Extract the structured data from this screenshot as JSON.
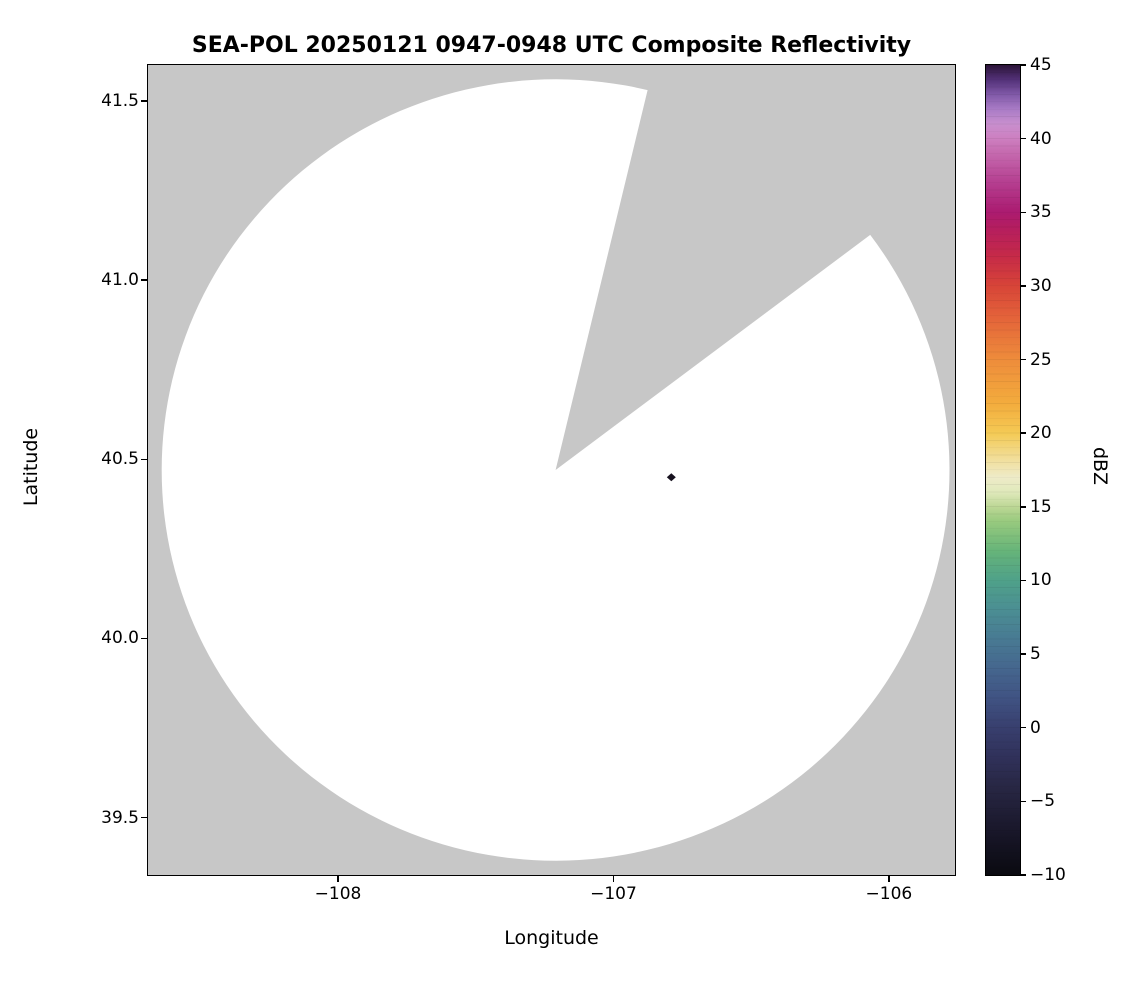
{
  "chart": {
    "title": "SEA-POL 20250121 0947-0948 UTC Composite Reflectivity",
    "xlabel": "Longitude",
    "ylabel": "Latitude",
    "colorbar_label": "dBZ"
  },
  "chart_data": {
    "type": "radar-ppi-map",
    "title": "SEA-POL 20250121 0947-0948 UTC Composite Reflectivity",
    "xlabel": "Longitude",
    "ylabel": "Latitude",
    "xlim": [
      -108.69,
      -105.76
    ],
    "ylim": [
      39.34,
      41.6
    ],
    "xticks": [
      -108,
      -107,
      -106
    ],
    "xtick_labels": [
      "−108",
      "−107",
      "−106"
    ],
    "yticks": [
      39.5,
      40.0,
      40.5,
      41.0,
      41.5
    ],
    "ytick_labels": [
      "39.5",
      "40.0",
      "40.5",
      "41.0",
      "41.5"
    ],
    "grid": false,
    "background_outside_range": "#c7c7c7",
    "inside_range_no_echo": "#ffffff",
    "radar": {
      "center_lon": -107.21,
      "center_lat": 40.47,
      "radius_lon_deg": 1.43,
      "radius_lat_deg": 1.09,
      "missing_sector_azimuth_deg": [
        13.5,
        53
      ]
    },
    "echo_points": [
      {
        "lon": -106.79,
        "lat": 40.45,
        "color": "#17121f"
      }
    ],
    "colorbar": {
      "label": "dBZ",
      "min": -10,
      "max": 45,
      "ticks": [
        -10,
        -5,
        0,
        5,
        10,
        15,
        20,
        25,
        30,
        35,
        40,
        45
      ],
      "tick_labels": [
        "−10",
        "−5",
        "0",
        "5",
        "10",
        "15",
        "20",
        "25",
        "30",
        "35",
        "40",
        "45"
      ],
      "orientation": "vertical",
      "stops": [
        [
          -10,
          "#0a0a10"
        ],
        [
          -7,
          "#19172a"
        ],
        [
          -4,
          "#282744"
        ],
        [
          -2,
          "#30315a"
        ],
        [
          0,
          "#383f6e"
        ],
        [
          2,
          "#405383"
        ],
        [
          4,
          "#45668e"
        ],
        [
          6,
          "#487a93"
        ],
        [
          8,
          "#4b8e93"
        ],
        [
          10,
          "#4fa189"
        ],
        [
          12,
          "#66b479"
        ],
        [
          14,
          "#98ca7e"
        ],
        [
          15,
          "#bcd795"
        ],
        [
          16,
          "#e0e9bb"
        ],
        [
          17,
          "#eeebc8"
        ],
        [
          18,
          "#f1e1a4"
        ],
        [
          20,
          "#f4ca55"
        ],
        [
          22,
          "#f3ac3d"
        ],
        [
          25,
          "#ee8c3b"
        ],
        [
          28,
          "#e3613a"
        ],
        [
          30,
          "#d74438"
        ],
        [
          32,
          "#c62a48"
        ],
        [
          34,
          "#b41d60"
        ],
        [
          35,
          "#ab1b70"
        ],
        [
          37,
          "#b53e90"
        ],
        [
          39,
          "#c569ae"
        ],
        [
          40,
          "#cd7fc0"
        ],
        [
          41,
          "#c88fce"
        ],
        [
          42,
          "#a97bc6"
        ],
        [
          43,
          "#8059a8"
        ],
        [
          44,
          "#533178"
        ],
        [
          45,
          "#2c1438"
        ]
      ]
    }
  }
}
